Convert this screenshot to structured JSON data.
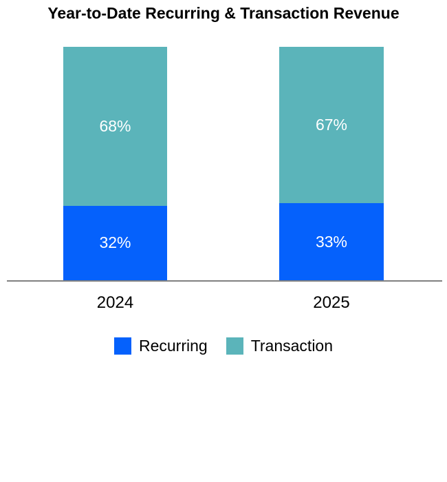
{
  "chart_data": {
    "type": "bar",
    "subtype": "stacked-100-percent",
    "title": "Year-to-Date Recurring & Transaction Revenue",
    "categories": [
      "2024",
      "2025"
    ],
    "series": [
      {
        "name": "Recurring",
        "color": "#0561FC",
        "values": [
          32,
          33
        ],
        "labels": [
          "32%",
          "33%"
        ]
      },
      {
        "name": "Transaction",
        "color": "#5BB4BA",
        "values": [
          68,
          67
        ],
        "labels": [
          "68%",
          "67%"
        ]
      }
    ],
    "unit": "percent",
    "ylim": [
      0,
      100
    ],
    "grid": false,
    "y_axis_visible": false,
    "legend_position": "bottom",
    "axis_color": "#808080",
    "value_label_color": "#FFFFFF",
    "title_color": "#000000"
  }
}
